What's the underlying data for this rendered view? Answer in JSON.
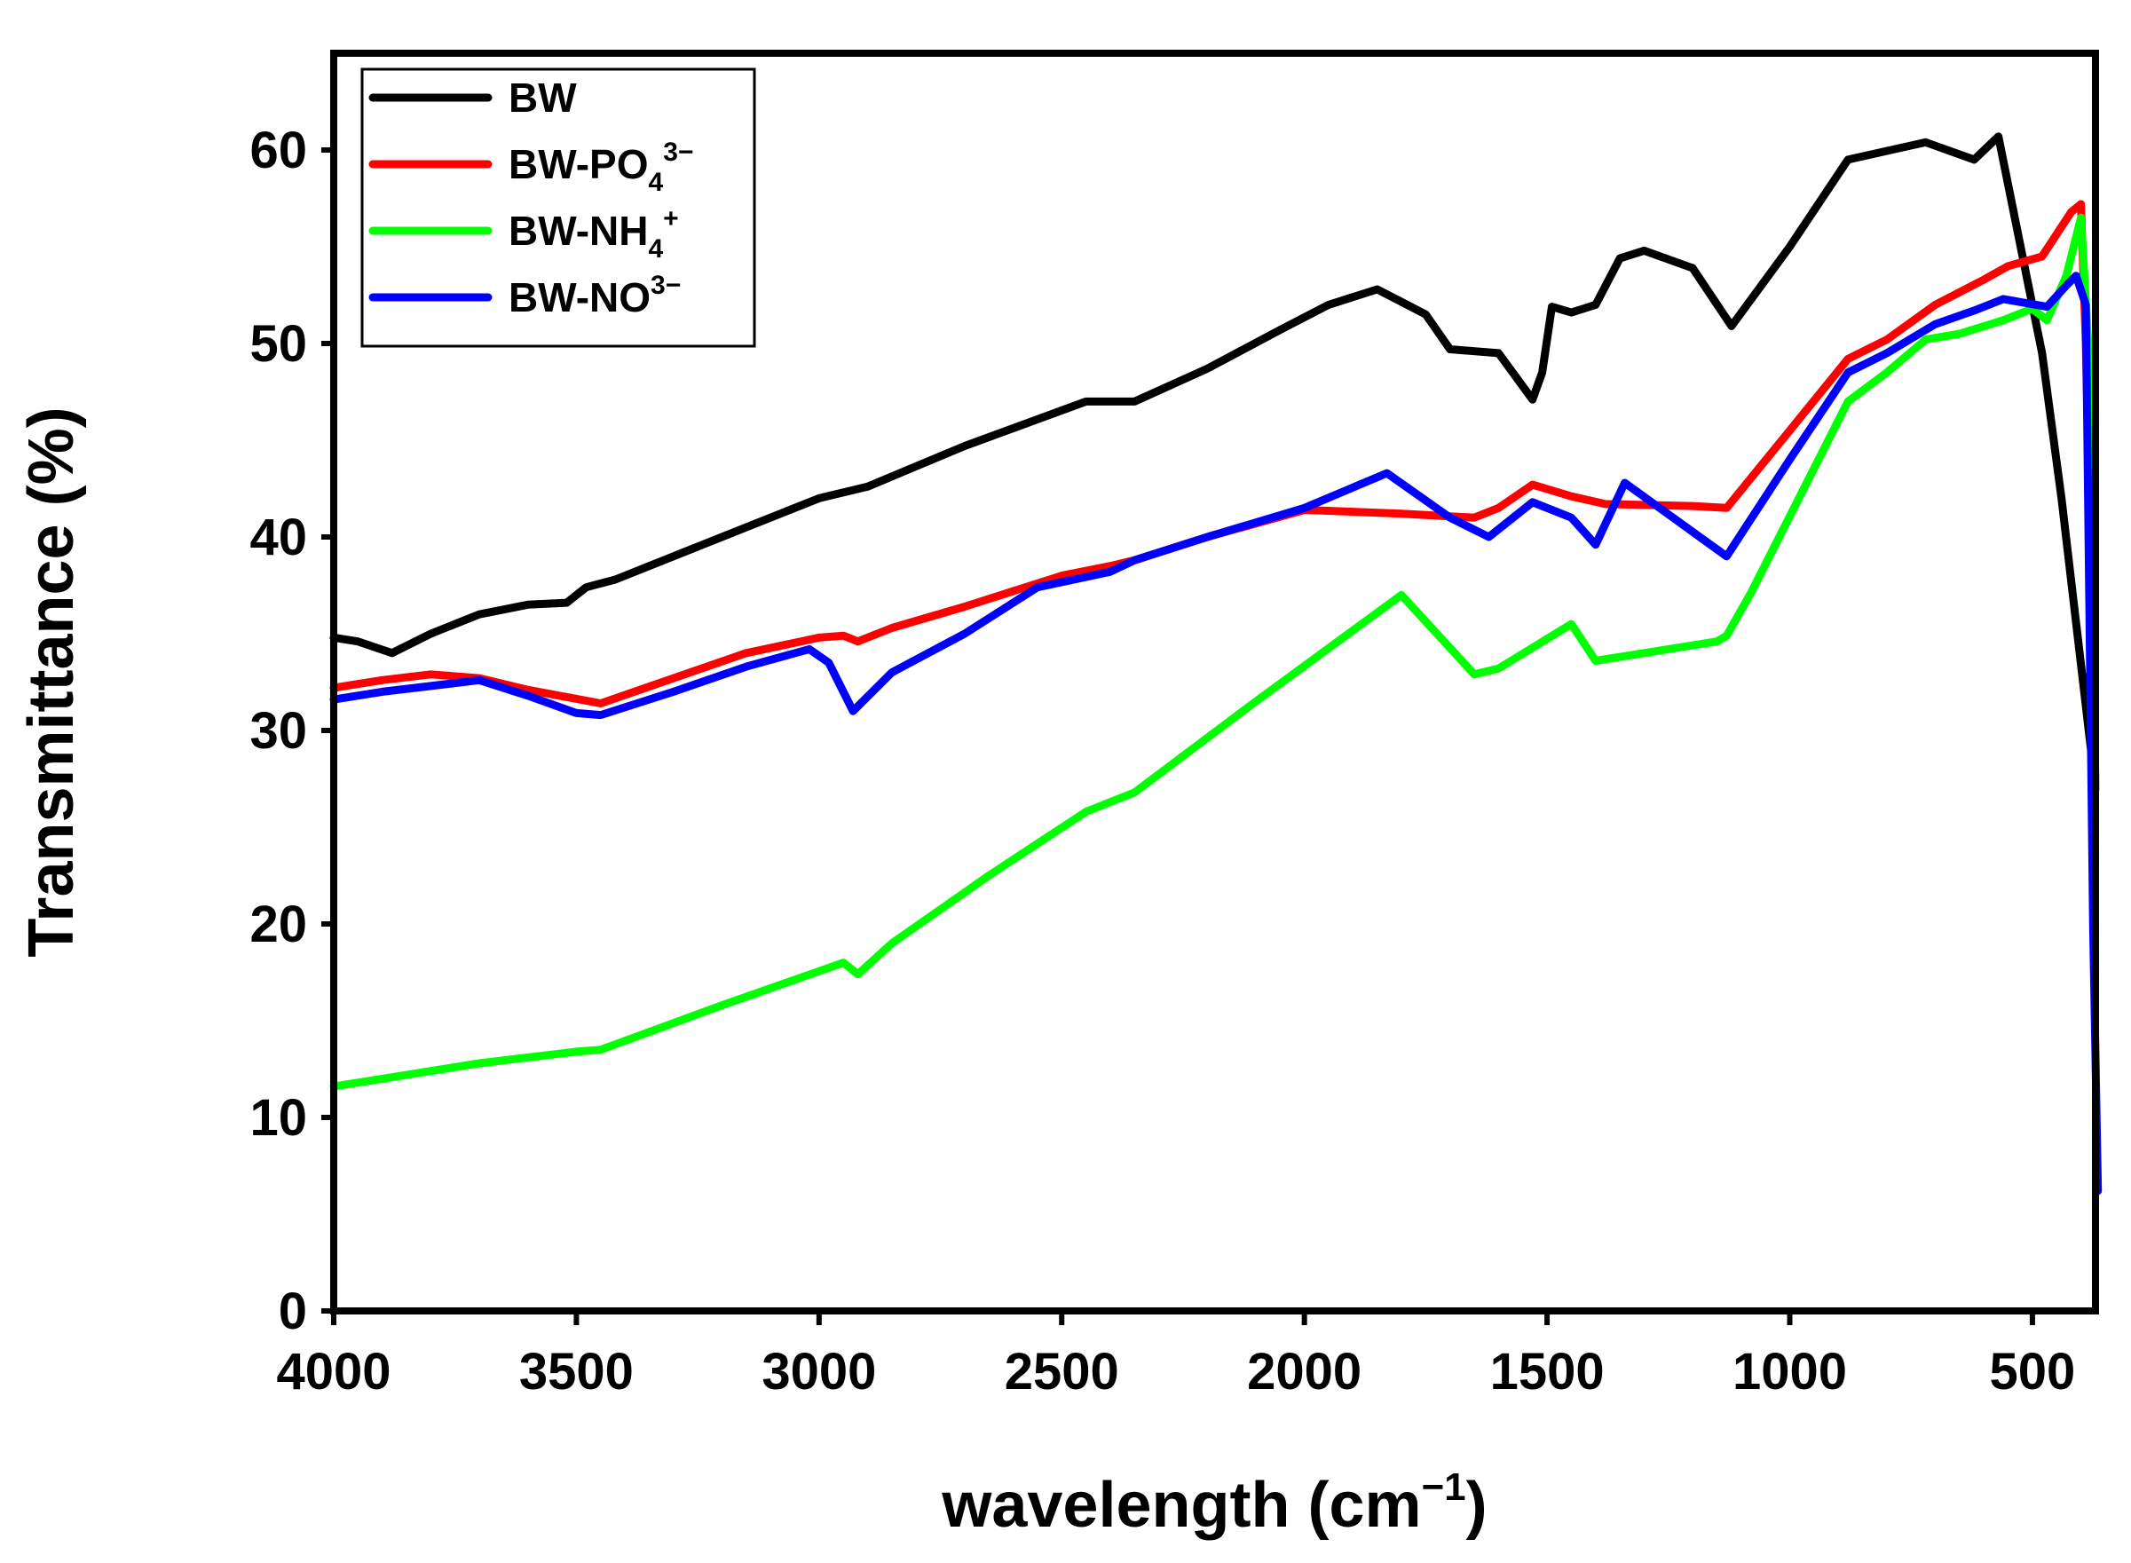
{
  "chart_data": {
    "type": "line",
    "title": "",
    "xlabel": {
      "main": "wavelength (cm",
      "sup": "−1",
      "tail": ")"
    },
    "ylabel": "Transmittance (%)",
    "xlim": [
      4000,
      370
    ],
    "ylim": [
      0,
      65
    ],
    "x_ticks": [
      4000,
      3500,
      3000,
      2500,
      2000,
      1500,
      1000,
      500
    ],
    "y_ticks": [
      0,
      10,
      20,
      30,
      40,
      50,
      60
    ],
    "grid": false,
    "legend_position": "top-left",
    "series": [
      {
        "name": "BW",
        "legend": {
          "base": "BW",
          "sub": "",
          "sup": ""
        },
        "color": "#000000",
        "points": [
          [
            4000,
            34.8
          ],
          [
            3950,
            34.6
          ],
          [
            3880,
            34.0
          ],
          [
            3800,
            35.0
          ],
          [
            3700,
            36.0
          ],
          [
            3600,
            36.5
          ],
          [
            3520,
            36.6
          ],
          [
            3480,
            37.4
          ],
          [
            3420,
            37.8
          ],
          [
            3300,
            39.0
          ],
          [
            3150,
            40.5
          ],
          [
            3000,
            42.0
          ],
          [
            2900,
            42.6
          ],
          [
            2700,
            44.7
          ],
          [
            2450,
            47.0
          ],
          [
            2350,
            47.0
          ],
          [
            2200,
            48.7
          ],
          [
            2050,
            50.7
          ],
          [
            1950,
            52.0
          ],
          [
            1850,
            52.8
          ],
          [
            1750,
            51.5
          ],
          [
            1700,
            49.7
          ],
          [
            1600,
            49.5
          ],
          [
            1530,
            47.1
          ],
          [
            1510,
            48.5
          ],
          [
            1490,
            51.9
          ],
          [
            1450,
            51.6
          ],
          [
            1400,
            52.0
          ],
          [
            1350,
            54.4
          ],
          [
            1300,
            54.8
          ],
          [
            1200,
            53.9
          ],
          [
            1120,
            50.9
          ],
          [
            1000,
            55.0
          ],
          [
            880,
            59.5
          ],
          [
            720,
            60.4
          ],
          [
            620,
            59.5
          ],
          [
            570,
            60.7
          ],
          [
            480,
            49.5
          ],
          [
            440,
            42.0
          ],
          [
            370,
            27.0
          ]
        ]
      },
      {
        "name": "BW-PO4 3−",
        "legend": {
          "base": "BW-PO",
          "sub": "4",
          "sup": "3−"
        },
        "color": "#ff0000",
        "points": [
          [
            4000,
            32.2
          ],
          [
            3900,
            32.6
          ],
          [
            3800,
            32.9
          ],
          [
            3700,
            32.7
          ],
          [
            3600,
            32.1
          ],
          [
            3450,
            31.4
          ],
          [
            3300,
            32.7
          ],
          [
            3150,
            34.0
          ],
          [
            3000,
            34.8
          ],
          [
            2950,
            34.9
          ],
          [
            2920,
            34.6
          ],
          [
            2850,
            35.3
          ],
          [
            2700,
            36.4
          ],
          [
            2500,
            38.0
          ],
          [
            2400,
            38.5
          ],
          [
            2350,
            38.8
          ],
          [
            2200,
            40.0
          ],
          [
            2000,
            41.4
          ],
          [
            1800,
            41.2
          ],
          [
            1650,
            41.0
          ],
          [
            1600,
            41.5
          ],
          [
            1530,
            42.7
          ],
          [
            1450,
            42.1
          ],
          [
            1380,
            41.7
          ],
          [
            1200,
            41.6
          ],
          [
            1130,
            41.5
          ],
          [
            1000,
            45.5
          ],
          [
            880,
            49.2
          ],
          [
            800,
            50.2
          ],
          [
            700,
            52.0
          ],
          [
            600,
            53.3
          ],
          [
            550,
            54.0
          ],
          [
            480,
            54.5
          ],
          [
            420,
            56.8
          ],
          [
            400,
            57.2
          ],
          [
            390,
            50.0
          ],
          [
            370,
            27.0
          ]
        ]
      },
      {
        "name": "BW-NH4 +",
        "legend": {
          "base": "BW-NH",
          "sub": "4",
          "sup": "+"
        },
        "color": "#00ff00",
        "points": [
          [
            4000,
            11.6
          ],
          [
            3900,
            12.0
          ],
          [
            3700,
            12.8
          ],
          [
            3500,
            13.4
          ],
          [
            3450,
            13.5
          ],
          [
            3200,
            15.8
          ],
          [
            2950,
            18.0
          ],
          [
            2920,
            17.4
          ],
          [
            2850,
            19.0
          ],
          [
            2650,
            22.5
          ],
          [
            2450,
            25.8
          ],
          [
            2350,
            26.8
          ],
          [
            2100,
            31.5
          ],
          [
            1800,
            37.0
          ],
          [
            1650,
            32.9
          ],
          [
            1600,
            33.2
          ],
          [
            1450,
            35.5
          ],
          [
            1400,
            33.6
          ],
          [
            1300,
            34.0
          ],
          [
            1150,
            34.6
          ],
          [
            1130,
            34.9
          ],
          [
            1080,
            37.1
          ],
          [
            880,
            47.0
          ],
          [
            800,
            48.5
          ],
          [
            720,
            50.2
          ],
          [
            650,
            50.5
          ],
          [
            560,
            51.2
          ],
          [
            500,
            51.8
          ],
          [
            470,
            51.2
          ],
          [
            430,
            53.5
          ],
          [
            400,
            56.5
          ],
          [
            385,
            50.0
          ],
          [
            370,
            27.0
          ]
        ]
      },
      {
        "name": "BW-NO3−",
        "legend": {
          "base": "BW-NO",
          "sub": "",
          "sup": "3−"
        },
        "color": "#0000ff",
        "points": [
          [
            4000,
            31.6
          ],
          [
            3900,
            32.0
          ],
          [
            3800,
            32.3
          ],
          [
            3700,
            32.6
          ],
          [
            3600,
            31.8
          ],
          [
            3500,
            30.9
          ],
          [
            3450,
            30.8
          ],
          [
            3300,
            32.0
          ],
          [
            3150,
            33.3
          ],
          [
            3020,
            34.2
          ],
          [
            2980,
            33.5
          ],
          [
            2930,
            31.0
          ],
          [
            2850,
            33.0
          ],
          [
            2700,
            35.0
          ],
          [
            2550,
            37.4
          ],
          [
            2400,
            38.2
          ],
          [
            2350,
            38.8
          ],
          [
            2200,
            40.0
          ],
          [
            2000,
            41.5
          ],
          [
            1830,
            43.3
          ],
          [
            1700,
            41.0
          ],
          [
            1620,
            40.0
          ],
          [
            1530,
            41.8
          ],
          [
            1450,
            41.0
          ],
          [
            1400,
            39.6
          ],
          [
            1340,
            42.8
          ],
          [
            1130,
            39.0
          ],
          [
            1000,
            44.0
          ],
          [
            880,
            48.5
          ],
          [
            800,
            49.5
          ],
          [
            700,
            51.0
          ],
          [
            620,
            51.7
          ],
          [
            560,
            52.3
          ],
          [
            470,
            51.9
          ],
          [
            430,
            53.0
          ],
          [
            410,
            53.5
          ],
          [
            390,
            52.0
          ],
          [
            375,
            20.0
          ],
          [
            365,
            6.2
          ]
        ]
      }
    ]
  }
}
